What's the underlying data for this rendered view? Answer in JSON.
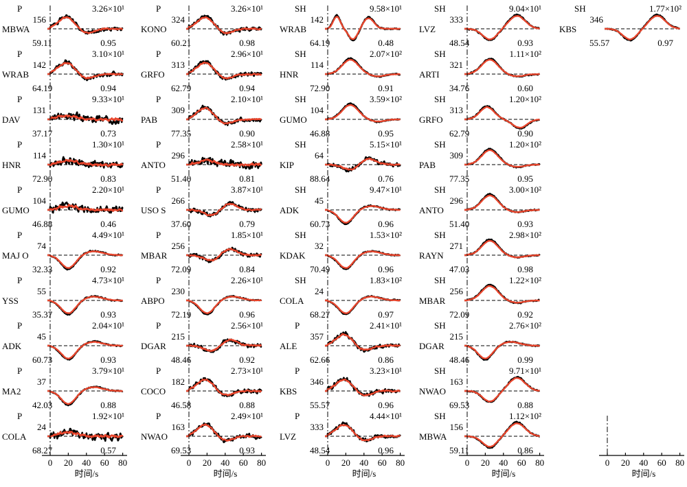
{
  "figure": {
    "xlabel": "时间/s",
    "xticks": [
      0,
      20,
      40,
      60,
      80
    ],
    "colors": {
      "observed": "#000000",
      "synthetic": "#e8452c"
    }
  },
  "chart_data": {
    "type": "line",
    "x_range": [
      0,
      80
    ],
    "columns": [
      [
        {
          "phase": "P",
          "station": "MBWA",
          "azimuth": "156",
          "distance": "59.11",
          "amplitude": "3.26×10¹",
          "correlation": "0.95",
          "shape": "hf",
          "seed": 1
        },
        {
          "phase": "P",
          "station": "WRAB",
          "azimuth": "142",
          "distance": "64.19",
          "amplitude": "3.10×10¹",
          "correlation": "0.94",
          "shape": "hf",
          "seed": 2
        },
        {
          "phase": "P",
          "station": "DAV",
          "azimuth": "131",
          "distance": "37.17",
          "amplitude": "9.33×10¹",
          "correlation": "0.73",
          "shape": "noisy",
          "seed": 3
        },
        {
          "phase": "P",
          "station": "HNR",
          "azimuth": "114",
          "distance": "72.90",
          "amplitude": "1.30×10¹",
          "correlation": "0.83",
          "shape": "noisy",
          "seed": 4
        },
        {
          "phase": "P",
          "station": "GUMO",
          "azimuth": "104",
          "distance": "46.88",
          "amplitude": "2.20×10¹",
          "correlation": "0.46",
          "shape": "noisy",
          "seed": 5
        },
        {
          "phase": "P",
          "station": "MAJ O",
          "azimuth": "74",
          "distance": "32.33",
          "amplitude": "4.49×10¹",
          "correlation": "0.92",
          "shape": "down",
          "seed": 6
        },
        {
          "phase": "P",
          "station": "YSS",
          "azimuth": "55",
          "distance": "35.37",
          "amplitude": "4.73×10¹",
          "correlation": "0.93",
          "shape": "down",
          "seed": 7
        },
        {
          "phase": "P",
          "station": "ADK",
          "azimuth": "45",
          "distance": "60.73",
          "amplitude": "2.04×10¹",
          "correlation": "0.93",
          "shape": "down",
          "seed": 8
        },
        {
          "phase": "P",
          "station": "MA2",
          "azimuth": "37",
          "distance": "42.03",
          "amplitude": "3.79×10¹",
          "correlation": "0.88",
          "shape": "down",
          "seed": 9
        },
        {
          "phase": "P",
          "station": "COLA",
          "azimuth": "24",
          "distance": "68.27",
          "amplitude": "1.92×10¹",
          "correlation": "0.57",
          "shape": "noisy",
          "seed": 10
        }
      ],
      [
        {
          "phase": "P",
          "station": "KONO",
          "azimuth": "324",
          "distance": "60.21",
          "amplitude": "3.26×10¹",
          "correlation": "0.98",
          "shape": "hf",
          "seed": 11
        },
        {
          "phase": "P",
          "station": "GRFO",
          "azimuth": "313",
          "distance": "62.79",
          "amplitude": "2.96×10¹",
          "correlation": "0.94",
          "shape": "hf",
          "seed": 12
        },
        {
          "phase": "P",
          "station": "PAB",
          "azimuth": "309",
          "distance": "77.35",
          "amplitude": "2.10×10¹",
          "correlation": "0.90",
          "shape": "hf",
          "seed": 13
        },
        {
          "phase": "P",
          "station": "ANTO",
          "azimuth": "296",
          "distance": "51.40",
          "amplitude": "2.58×10¹",
          "correlation": "0.81",
          "shape": "noisy",
          "seed": 14
        },
        {
          "phase": "P",
          "station": "USO S",
          "azimuth": "266",
          "distance": "37.60",
          "amplitude": "3.87×10¹",
          "correlation": "0.79",
          "shape": "mixed",
          "seed": 15
        },
        {
          "phase": "P",
          "station": "MBAR",
          "azimuth": "256",
          "distance": "72.09",
          "amplitude": "1.85×10¹",
          "correlation": "0.84",
          "shape": "mixed",
          "seed": 16
        },
        {
          "phase": "P",
          "station": "ABPO",
          "azimuth": "230",
          "distance": "72.19",
          "amplitude": "2.26×10¹",
          "correlation": "0.96",
          "shape": "down",
          "seed": 17
        },
        {
          "phase": "P",
          "station": "DGAR",
          "azimuth": "215",
          "distance": "48.46",
          "amplitude": "2.56×10¹",
          "correlation": "0.92",
          "shape": "mixed",
          "seed": 18
        },
        {
          "phase": "P",
          "station": "COCO",
          "azimuth": "182",
          "distance": "46.58",
          "amplitude": "2.73×10¹",
          "correlation": "0.88",
          "shape": "hf",
          "seed": 19
        },
        {
          "phase": "P",
          "station": "NWAO",
          "azimuth": "163",
          "distance": "69.53",
          "amplitude": "2.49×10¹",
          "correlation": "0.93",
          "shape": "hf",
          "seed": 20
        }
      ],
      [
        {
          "phase": "SH",
          "station": "WRAB",
          "azimuth": "142",
          "distance": "64.19",
          "amplitude": "9.58×10¹",
          "correlation": "0.48",
          "shape": "shwiggle",
          "seed": 21
        },
        {
          "phase": "SH",
          "station": "HNR",
          "azimuth": "114",
          "distance": "72.90",
          "amplitude": "2.07×10²",
          "correlation": "0.91",
          "shape": "up",
          "seed": 22
        },
        {
          "phase": "SH",
          "station": "GUMO",
          "azimuth": "104",
          "distance": "46.88",
          "amplitude": "3.59×10²",
          "correlation": "0.95",
          "shape": "up",
          "seed": 23
        },
        {
          "phase": "SH",
          "station": "KIP",
          "azimuth": "64",
          "distance": "88.64",
          "amplitude": "5.15×10¹",
          "correlation": "0.76",
          "shape": "mixed",
          "seed": 24
        },
        {
          "phase": "SH",
          "station": "ADK",
          "azimuth": "45",
          "distance": "60.73",
          "amplitude": "9.47×10¹",
          "correlation": "0.96",
          "shape": "down",
          "seed": 25
        },
        {
          "phase": "SH",
          "station": "KDAK",
          "azimuth": "32",
          "distance": "70.49",
          "amplitude": "1.53×10²",
          "correlation": "0.96",
          "shape": "down",
          "seed": 26
        },
        {
          "phase": "SH",
          "station": "COLA",
          "azimuth": "24",
          "distance": "68.27",
          "amplitude": "1.83×10²",
          "correlation": "0.97",
          "shape": "down",
          "seed": 27
        },
        {
          "phase": "P",
          "station": "ALE",
          "azimuth": "357",
          "distance": "62.66",
          "amplitude": "2.41×10¹",
          "correlation": "0.86",
          "shape": "hf",
          "seed": 28
        },
        {
          "phase": "P",
          "station": "KBS",
          "azimuth": "346",
          "distance": "55.57",
          "amplitude": "3.23×10¹",
          "correlation": "0.96",
          "shape": "hf",
          "seed": 29
        },
        {
          "phase": "P",
          "station": "LVZ",
          "azimuth": "333",
          "distance": "48.54",
          "amplitude": "4.44×10¹",
          "correlation": "0.96",
          "shape": "hf",
          "seed": 30
        }
      ],
      [
        {
          "phase": "SH",
          "station": "LVZ",
          "azimuth": "333",
          "distance": "48.54",
          "amplitude": "9.04×10¹",
          "correlation": "0.93",
          "shape": "downup",
          "seed": 31
        },
        {
          "phase": "SH",
          "station": "ARTI",
          "azimuth": "321",
          "distance": "34.76",
          "amplitude": "1.11×10²",
          "correlation": "0.60",
          "shape": "up",
          "seed": 32
        },
        {
          "phase": "SH",
          "station": "GRFO",
          "azimuth": "313",
          "distance": "62.79",
          "amplitude": "1.20×10²",
          "correlation": "0.90",
          "shape": "upneg",
          "seed": 33
        },
        {
          "phase": "SH",
          "station": "PAB",
          "azimuth": "309",
          "distance": "77.35",
          "amplitude": "1.20×10²",
          "correlation": "0.95",
          "shape": "up",
          "seed": 34
        },
        {
          "phase": "SH",
          "station": "ANTO",
          "azimuth": "296",
          "distance": "51.40",
          "amplitude": "3.00×10²",
          "correlation": "0.93",
          "shape": "up",
          "seed": 35
        },
        {
          "phase": "SH",
          "station": "RAYN",
          "azimuth": "271",
          "distance": "47.03",
          "amplitude": "2.98×10²",
          "correlation": "0.98",
          "shape": "up",
          "seed": 36
        },
        {
          "phase": "SH",
          "station": "MBAR",
          "azimuth": "256",
          "distance": "72.09",
          "amplitude": "1.22×10²",
          "correlation": "0.92",
          "shape": "up",
          "seed": 37
        },
        {
          "phase": "SH",
          "station": "DGAR",
          "azimuth": "215",
          "distance": "48.46",
          "amplitude": "2.76×10²",
          "correlation": "0.99",
          "shape": "down",
          "seed": 38
        },
        {
          "phase": "SH",
          "station": "NWAO",
          "azimuth": "163",
          "distance": "69.53",
          "amplitude": "9.71×10¹",
          "correlation": "0.88",
          "shape": "downup",
          "seed": 39
        },
        {
          "phase": "SH",
          "station": "MBWA",
          "azimuth": "156",
          "distance": "59.11",
          "amplitude": "1.12×10²",
          "correlation": "0.86",
          "shape": "downup",
          "seed": 40
        }
      ],
      [
        {
          "phase": "SH",
          "station": "KBS",
          "azimuth": "346",
          "distance": "55.57",
          "amplitude": "1.77×10²",
          "correlation": "0.97",
          "shape": "downup",
          "seed": 41
        }
      ]
    ]
  }
}
